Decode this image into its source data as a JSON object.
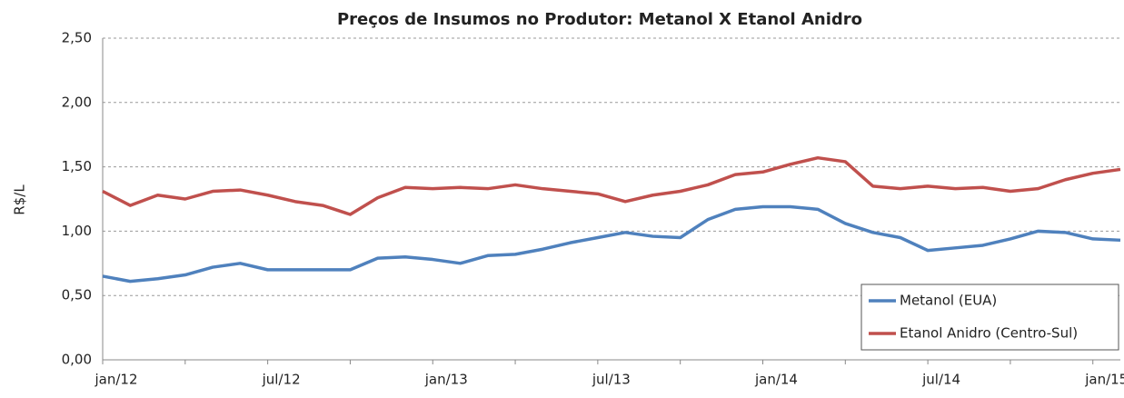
{
  "chart_data": {
    "type": "line",
    "title": "Preços  de Insumos no Produtor:  Metanol X Etanol Anidro",
    "y_label": "R$/L",
    "categories": [
      "jan/12",
      null,
      null,
      null,
      null,
      null,
      "jul/12",
      null,
      null,
      null,
      null,
      null,
      "jan/13",
      null,
      null,
      null,
      null,
      null,
      "jul/13",
      null,
      null,
      null,
      null,
      null,
      "jan/14",
      null,
      null,
      null,
      null,
      null,
      "jul/14",
      null,
      null,
      null,
      null,
      null,
      "jan/15",
      null
    ],
    "series": [
      {
        "name": "Metanol  (EUA)",
        "color": "#4f81bd",
        "values": [
          0.65,
          0.61,
          0.63,
          0.66,
          0.72,
          0.75,
          0.7,
          0.7,
          0.7,
          0.7,
          0.79,
          0.8,
          0.78,
          0.75,
          0.81,
          0.82,
          0.86,
          0.91,
          0.95,
          0.99,
          0.96,
          0.95,
          1.09,
          1.17,
          1.19,
          1.19,
          1.17,
          1.06,
          0.99,
          0.95,
          0.85,
          0.87,
          0.89,
          0.94,
          1.0,
          0.99,
          0.94,
          0.93
        ]
      },
      {
        "name": "Etanol Anidro (Centro-Sul)",
        "color": "#c0504d",
        "values": [
          1.31,
          1.2,
          1.28,
          1.25,
          1.31,
          1.32,
          1.28,
          1.23,
          1.2,
          1.13,
          1.26,
          1.34,
          1.33,
          1.34,
          1.33,
          1.36,
          1.33,
          1.31,
          1.29,
          1.23,
          1.28,
          1.31,
          1.36,
          1.44,
          1.46,
          1.52,
          1.57,
          1.54,
          1.35,
          1.33,
          1.35,
          1.33,
          1.34,
          1.31,
          1.33,
          1.4,
          1.45,
          1.48
        ]
      }
    ],
    "ylim": [
      0,
      2.5
    ],
    "yticks": [
      {
        "value": 0,
        "label": "0,00"
      },
      {
        "value": 0.5,
        "label": "0,50"
      },
      {
        "value": 1,
        "label": "1,00"
      },
      {
        "value": 1.5,
        "label": "1,50"
      },
      {
        "value": 2,
        "label": "2,00"
      },
      {
        "value": 2.5,
        "label": "2,50"
      }
    ],
    "grid": true,
    "legend": "lower right"
  }
}
